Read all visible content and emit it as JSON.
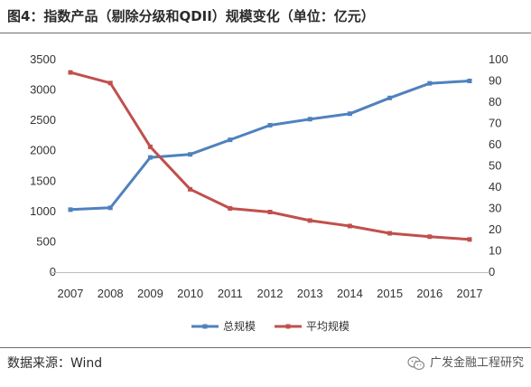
{
  "figure": {
    "title": "图4：指数产品（剔除分级和QDII）规模变化（单位：亿元）",
    "source": "数据来源：Wind",
    "watermark": "广发金融工程研究",
    "watermark_icon": "wechat-icon"
  },
  "chart_data": {
    "type": "line",
    "categories": [
      "2007",
      "2008",
      "2009",
      "2010",
      "2011",
      "2012",
      "2013",
      "2014",
      "2015",
      "2016",
      "2017"
    ],
    "series": [
      {
        "name": "总规模",
        "axis": "left",
        "color": "#4f81bd",
        "values": [
          1030,
          1060,
          1890,
          1940,
          2180,
          2420,
          2520,
          2610,
          2870,
          3110,
          3150
        ]
      },
      {
        "name": "平均规模",
        "axis": "right",
        "color": "#c0504d",
        "values": [
          94,
          89,
          59,
          39,
          30,
          28.3,
          24.3,
          21.7,
          18.3,
          16.7,
          15.4
        ]
      }
    ],
    "y_left": {
      "min": 0,
      "max": 3500,
      "ticks": [
        "0",
        "500",
        "1000",
        "1500",
        "2000",
        "2500",
        "3000",
        "3500"
      ]
    },
    "y_right": {
      "min": 0,
      "max": 100,
      "ticks": [
        "0",
        "10",
        "20",
        "30",
        "40",
        "50",
        "60",
        "70",
        "80",
        "90",
        "100"
      ]
    },
    "grid": false,
    "legend_position": "bottom"
  }
}
